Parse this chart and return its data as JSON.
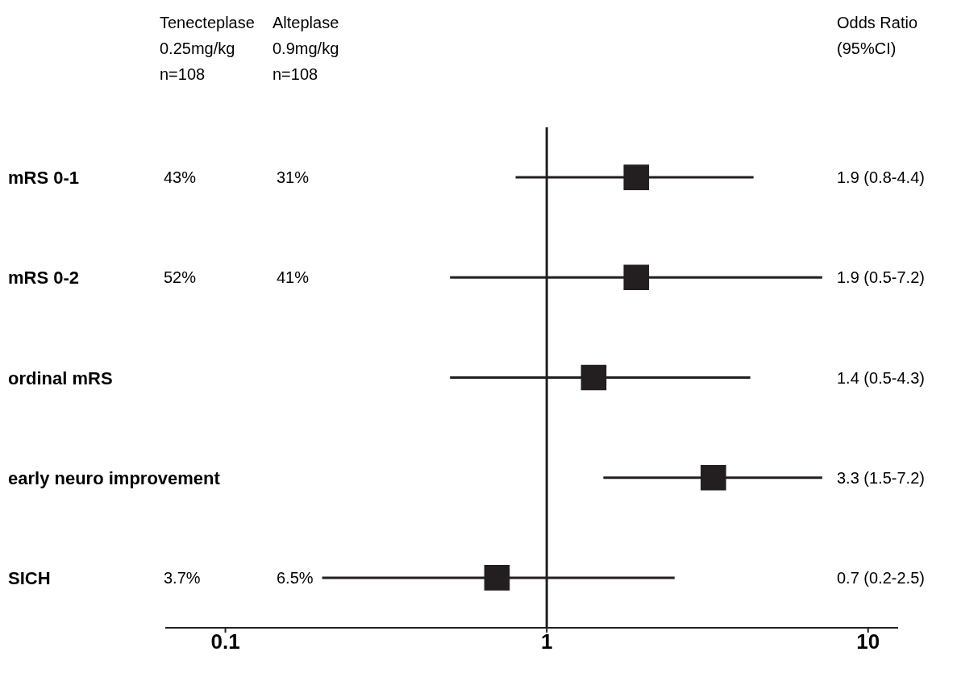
{
  "chart_data": {
    "type": "scatter",
    "orientation": "horizontal",
    "categories": [
      "mRS 0-1",
      "mRS 0-2",
      "ordinal mRS",
      "early neuro improvement",
      "SICH"
    ],
    "values": [
      1.9,
      1.9,
      1.4,
      3.3,
      0.7
    ],
    "errors": [
      [
        0.8,
        4.4
      ],
      [
        0.5,
        7.2
      ],
      [
        0.5,
        4.3
      ],
      [
        1.5,
        7.2
      ],
      [
        0.2,
        2.5
      ]
    ],
    "color": "#231f20",
    "marker": "square",
    "log": "x",
    "xlim": [
      0.065,
      12.4
    ],
    "xticks": [
      0.1,
      1,
      10
    ],
    "ref_lines": [
      {
        "axis": "x",
        "value": 1
      }
    ],
    "annotations": [
      "Tenecteplase\n0.25mg/kg\nn=108",
      "Alteplase\n0.9mg/kg\nn=108",
      "Odds Ratio\n(95%CI)",
      "43%",
      "31%",
      "52%",
      "41%",
      "3.7%",
      "6.5%",
      "1.9 (0.8-4.4)",
      "1.9 (0.5-7.2)",
      "1.4 (0.5-4.3)",
      "3.3 (1.5-7.2)",
      "0.7 (0.2-2.5)"
    ]
  }
}
